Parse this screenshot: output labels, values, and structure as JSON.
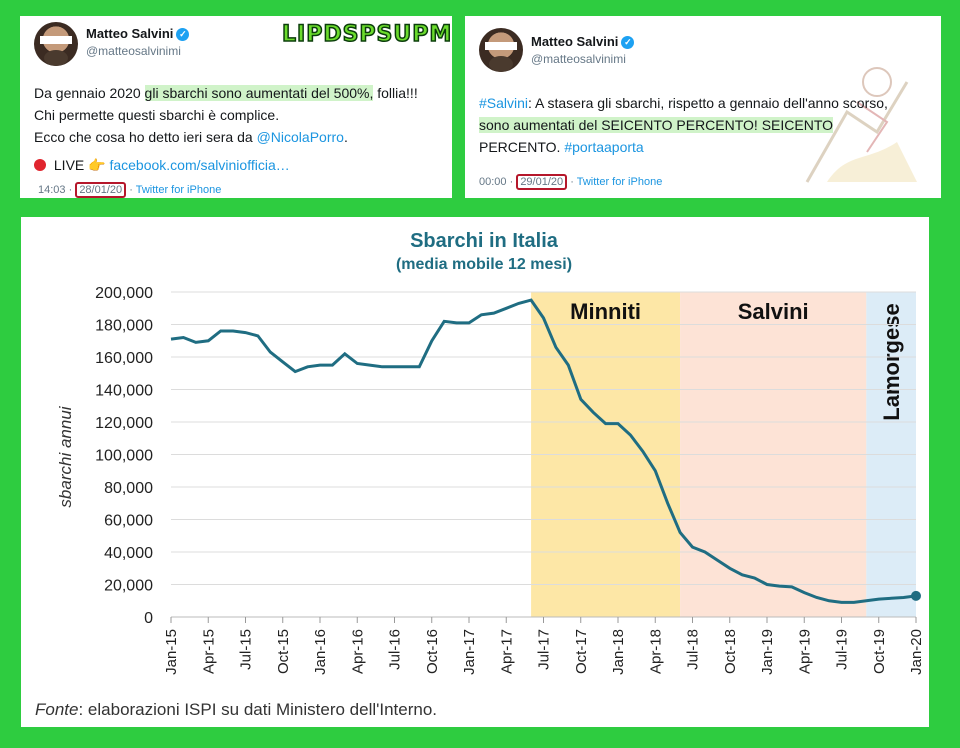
{
  "tweets": [
    {
      "name": "Matteo Salvini",
      "handle": "@matteosalvinimi",
      "lines": {
        "l1_pre": "Da gennaio 2020 ",
        "l1_hl": "gli sbarchi sono aumentati del 500%,",
        "l1_post": " follia!!!",
        "l2": "Chi permette questi sbarchi è complice.",
        "l3_pre": "Ecco che cosa ho detto ieri sera da ",
        "l3_link": "@NicolaPorro",
        "l3_post": ".",
        "l4_pre": " LIVE 👉 ",
        "l4_link": "facebook.com/salviniofficia…"
      },
      "time": "14:03 ·",
      "date": "28/01/20",
      "client": "Twitter for iPhone"
    },
    {
      "name": "Matteo Salvini",
      "handle": "@matteosalvinimi",
      "lines": {
        "l1_link": "#Salvini",
        "l1_post": ": A stasera gli sbarchi, rispetto a gennaio dell'anno scorso,",
        "l2_hl": "sono aumentati del SEICENTO PERCENTO! SEICENTO",
        "l3_pre": "PERCENTO. ",
        "l3_link": "#portaaporta"
      },
      "time": "00:00 ·",
      "date": "29/01/20",
      "client": "Twitter for iPhone"
    }
  ],
  "brand": "LIPDSPSUPM",
  "colors": {
    "line": "#1f6d82",
    "minniti": "#fde7a6",
    "salvini": "#fde3d6",
    "lamorgese": "#dcecf7",
    "title": "#1f6d82",
    "highlight": "#78dc64",
    "date_box": "#b5172b"
  },
  "chart_data": {
    "type": "line",
    "title": "Sbarchi in Italia",
    "subtitle": "(media mobile 12 mesi)",
    "ylabel": "sbarchi annui",
    "xlabel": "",
    "ylim": [
      0,
      200000
    ],
    "yticks": [
      "0",
      "20,000",
      "40,000",
      "60,000",
      "80,000",
      "100,000",
      "120,000",
      "140,000",
      "160,000",
      "180,000",
      "200,000"
    ],
    "xticks": [
      "Jan-15",
      "Apr-15",
      "Jul-15",
      "Oct-15",
      "Jan-16",
      "Apr-16",
      "Jul-16",
      "Oct-16",
      "Jan-17",
      "Apr-17",
      "Jul-17",
      "Oct-17",
      "Jan-18",
      "Apr-18",
      "Jul-18",
      "Oct-18",
      "Jan-19",
      "Apr-19",
      "Jul-19",
      "Oct-19",
      "Jan-20"
    ],
    "periods": [
      {
        "label": "Minniti",
        "start_month": 29,
        "end_month": 41,
        "color": "#fde7a6"
      },
      {
        "label": "Salvini",
        "start_month": 41,
        "end_month": 56,
        "color": "#fde3d6"
      },
      {
        "label": "Lamorgese",
        "start_month": 56,
        "end_month": 60,
        "color": "#dcecf7"
      }
    ],
    "series": [
      {
        "values": [
          171000,
          172000,
          169000,
          170000,
          176000,
          176000,
          175000,
          173000,
          163000,
          157000,
          151000,
          154000,
          155000,
          155000,
          162000,
          156000,
          155000,
          154000,
          154000,
          154000,
          154000,
          170000,
          182000,
          181000,
          181000,
          186000,
          187000,
          190000,
          193000,
          195000,
          184000,
          166000,
          155000,
          134000,
          126000,
          119000,
          119000,
          112000,
          102000,
          90000,
          70000,
          52000,
          43000,
          40000,
          35000,
          30000,
          26000,
          24000,
          20000,
          19000,
          18500,
          15000,
          12000,
          10000,
          9000,
          9000,
          10000,
          11000,
          11500,
          12000,
          13000
        ]
      }
    ],
    "source_label": "Fonte",
    "source_text": ": elaborazioni ISPI su dati Ministero dell'Interno."
  }
}
